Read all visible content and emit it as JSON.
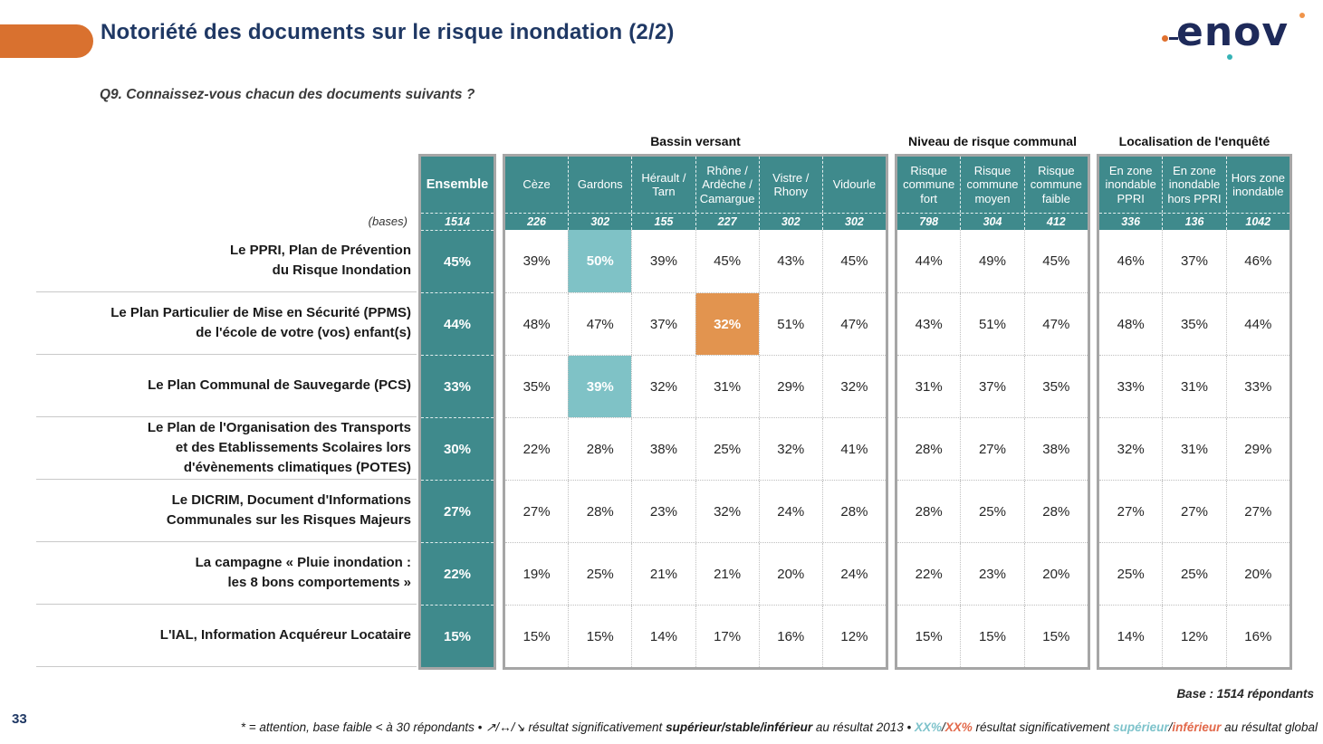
{
  "header": {
    "title": "Notoriété des documents sur le risque inondation (2/2)",
    "question": "Q9. Connaissez-vous chacun des documents suivants ?",
    "logo": "enov"
  },
  "colors": {
    "teal_header": "#3F8A8C",
    "teal_highlight": "#7FC2C6",
    "orange_highlight": "#E2944F",
    "accent_orange": "#D9712F",
    "title_navy": "#1F3864"
  },
  "table": {
    "bases_label": "(bases)",
    "ensemble": {
      "header": "Ensemble",
      "base": "1514"
    },
    "groups": [
      {
        "title": "Bassin versant",
        "columns": [
          "Cèze",
          "Gardons",
          "Hérault / Tarn",
          "Rhône / Ardèche / Camargue",
          "Vistre / Rhony",
          "Vidourle"
        ],
        "bases": [
          "226",
          "302",
          "155",
          "227",
          "302",
          "302"
        ]
      },
      {
        "title": "Niveau de risque communal",
        "columns": [
          "Risque commune fort",
          "Risque commune moyen",
          "Risque commune faible"
        ],
        "bases": [
          "798",
          "304",
          "412"
        ]
      },
      {
        "title": "Localisation de l'enquêté",
        "columns": [
          "En zone inondable PPRI",
          "En zone inondable hors PPRI",
          "Hors zone inondable"
        ],
        "bases": [
          "336",
          "136",
          "1042"
        ]
      }
    ],
    "rows": [
      {
        "label": [
          "Le PPRI, Plan de Prévention",
          "du Risque Inondation"
        ],
        "ensemble": "45%",
        "cells": [
          [
            "39%",
            "50%",
            "39%",
            "45%",
            "43%",
            "45%"
          ],
          [
            "44%",
            "49%",
            "45%"
          ],
          [
            "46%",
            "37%",
            "46%"
          ]
        ],
        "highlights": [
          {
            "group": 0,
            "col": 1,
            "type": "teal"
          }
        ]
      },
      {
        "label": [
          "Le Plan Particulier de Mise en Sécurité (PPMS)",
          "de l'école de votre (vos) enfant(s)"
        ],
        "ensemble": "44%",
        "cells": [
          [
            "48%",
            "47%",
            "37%",
            "32%",
            "51%",
            "47%"
          ],
          [
            "43%",
            "51%",
            "47%"
          ],
          [
            "48%",
            "35%",
            "44%"
          ]
        ],
        "highlights": [
          {
            "group": 0,
            "col": 3,
            "type": "orange"
          }
        ]
      },
      {
        "label": [
          "Le Plan Communal de Sauvegarde (PCS)"
        ],
        "ensemble": "33%",
        "cells": [
          [
            "35%",
            "39%",
            "32%",
            "31%",
            "29%",
            "32%"
          ],
          [
            "31%",
            "37%",
            "35%"
          ],
          [
            "33%",
            "31%",
            "33%"
          ]
        ],
        "highlights": [
          {
            "group": 0,
            "col": 1,
            "type": "teal"
          }
        ]
      },
      {
        "label": [
          "Le Plan de l'Organisation des Transports",
          "et des Etablissements Scolaires lors",
          "d'évènements climatiques (POTES)"
        ],
        "ensemble": "30%",
        "cells": [
          [
            "22%",
            "28%",
            "38%",
            "25%",
            "32%",
            "41%"
          ],
          [
            "28%",
            "27%",
            "38%"
          ],
          [
            "32%",
            "31%",
            "29%"
          ]
        ],
        "highlights": []
      },
      {
        "label": [
          "Le DICRIM, Document d'Informations",
          "Communales sur les Risques Majeurs"
        ],
        "ensemble": "27%",
        "cells": [
          [
            "27%",
            "28%",
            "23%",
            "32%",
            "24%",
            "28%"
          ],
          [
            "28%",
            "25%",
            "28%"
          ],
          [
            "27%",
            "27%",
            "27%"
          ]
        ],
        "highlights": []
      },
      {
        "label": [
          "La campagne « Pluie inondation :",
          "les 8 bons comportements »"
        ],
        "ensemble": "22%",
        "cells": [
          [
            "19%",
            "25%",
            "21%",
            "21%",
            "20%",
            "24%"
          ],
          [
            "22%",
            "23%",
            "20%"
          ],
          [
            "25%",
            "25%",
            "20%"
          ]
        ],
        "highlights": []
      },
      {
        "label": [
          "L'IAL, Information Acquéreur Locataire"
        ],
        "ensemble": "15%",
        "cells": [
          [
            "15%",
            "15%",
            "14%",
            "17%",
            "16%",
            "12%"
          ],
          [
            "15%",
            "15%",
            "15%"
          ],
          [
            "14%",
            "12%",
            "16%"
          ]
        ],
        "highlights": []
      }
    ]
  },
  "footer": {
    "base_note": "Base : 1514 répondants",
    "page_number": "33",
    "note_segments": [
      {
        "text": "* = attention, base faible < à 30 répondants • ",
        "style": "n"
      },
      {
        "text": "↗/↔/↘",
        "style": "n"
      },
      {
        "text": " résultat significativement ",
        "style": "n"
      },
      {
        "text": "supérieur",
        "style": "b"
      },
      {
        "text": "/",
        "style": "b"
      },
      {
        "text": "stable",
        "style": "b"
      },
      {
        "text": "/",
        "style": "b"
      },
      {
        "text": "inférieur",
        "style": "b"
      },
      {
        "text": " au résultat 2013 • ",
        "style": "n"
      },
      {
        "text": "XX%",
        "style": "tb"
      },
      {
        "text": "/",
        "style": "n"
      },
      {
        "text": "XX%",
        "style": "ob"
      },
      {
        "text": " résultat significativement ",
        "style": "n"
      },
      {
        "text": "supérieur",
        "style": "tb"
      },
      {
        "text": "/",
        "style": "n"
      },
      {
        "text": "inférieur",
        "style": "ob"
      },
      {
        "text": " au résultat global",
        "style": "n"
      }
    ]
  },
  "chart_data": {
    "type": "table",
    "title": "Notoriété des documents sur le risque inondation (2/2)",
    "subtitle": "Q9. Connaissez-vous chacun des documents suivants ?",
    "units": "%",
    "column_groups": [
      "Ensemble",
      "Bassin versant",
      "Niveau de risque communal",
      "Localisation de l'enquêté"
    ],
    "columns": [
      "Ensemble",
      "Cèze",
      "Gardons",
      "Hérault / Tarn",
      "Rhône / Ardèche / Camargue",
      "Vistre / Rhony",
      "Vidourle",
      "Risque commune fort",
      "Risque commune moyen",
      "Risque commune faible",
      "En zone inondable PPRI",
      "En zone inondable hors PPRI",
      "Hors zone inondable"
    ],
    "bases": [
      1514,
      226,
      302,
      155,
      227,
      302,
      302,
      798,
      304,
      412,
      336,
      136,
      1042
    ],
    "rows": [
      {
        "label": "Le PPRI, Plan de Prévention du Risque Inondation",
        "values": [
          45,
          39,
          50,
          39,
          45,
          43,
          45,
          44,
          49,
          45,
          46,
          37,
          46
        ]
      },
      {
        "label": "Le Plan Particulier de Mise en Sécurité (PPMS) de l'école de votre (vos) enfant(s)",
        "values": [
          44,
          48,
          47,
          37,
          32,
          51,
          47,
          43,
          51,
          47,
          48,
          35,
          44
        ]
      },
      {
        "label": "Le Plan Communal de Sauvegarde (PCS)",
        "values": [
          33,
          35,
          39,
          32,
          31,
          29,
          32,
          31,
          37,
          35,
          33,
          31,
          33
        ]
      },
      {
        "label": "Le Plan de l'Organisation des Transports et des Etablissements Scolaires lors d'évènements climatiques (POTES)",
        "values": [
          30,
          22,
          28,
          38,
          25,
          32,
          41,
          28,
          27,
          38,
          32,
          31,
          29
        ]
      },
      {
        "label": "Le DICRIM, Document d'Informations Communales sur les Risques Majeurs",
        "values": [
          27,
          27,
          28,
          23,
          32,
          24,
          28,
          28,
          25,
          28,
          27,
          27,
          27
        ]
      },
      {
        "label": "La campagne « Pluie inondation : les 8 bons comportements »",
        "values": [
          22,
          19,
          25,
          21,
          21,
          20,
          24,
          22,
          23,
          20,
          25,
          25,
          20
        ]
      },
      {
        "label": "L'IAL, Information Acquéreur Locataire",
        "values": [
          15,
          15,
          15,
          14,
          17,
          16,
          12,
          15,
          15,
          15,
          14,
          12,
          16
        ]
      }
    ],
    "highlights": [
      {
        "row": "Le PPRI, Plan de Prévention du Risque Inondation",
        "column": "Gardons",
        "value": 50,
        "significance": "supérieur au résultat global"
      },
      {
        "row": "Le Plan Particulier de Mise en Sécurité (PPMS) de l'école de votre (vos) enfant(s)",
        "column": "Rhône / Ardèche / Camargue",
        "value": 32,
        "significance": "inférieur au résultat global"
      },
      {
        "row": "Le Plan Communal de Sauvegarde (PCS)",
        "column": "Gardons",
        "value": 39,
        "significance": "supérieur au résultat global"
      }
    ]
  }
}
